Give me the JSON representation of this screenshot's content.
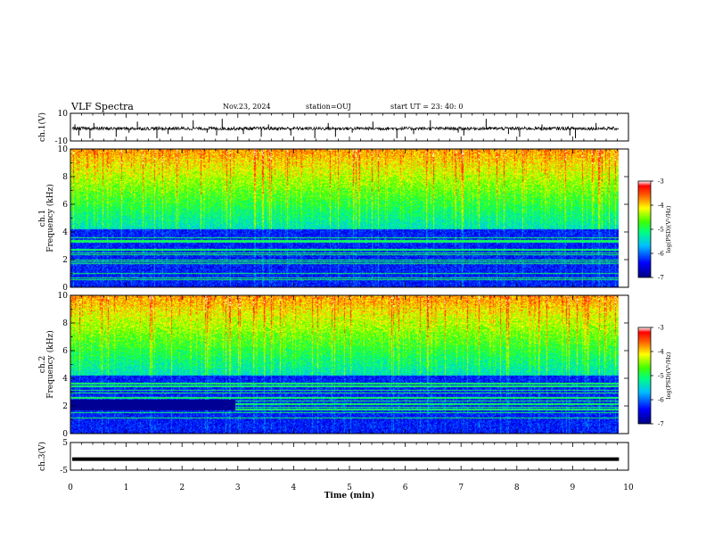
{
  "header": {
    "title": "VLF Spectra",
    "date": "Nov.23, 2024",
    "station": "station=OUJ",
    "start": "start  UT  =   23: 40: 0"
  },
  "chart_data": [
    {
      "type": "line",
      "id": "ch1-waveform",
      "ylabel": "ch.1(V)",
      "ylim": [
        -10,
        10
      ],
      "yticks": [
        10,
        -10
      ],
      "xlim": [
        0,
        10
      ],
      "signal_end_min": 9.83,
      "baseline": -1.0,
      "noise_amplitude": 1.2,
      "spike_times_min": [
        0.08,
        0.15,
        0.35,
        0.42,
        0.82,
        1.05,
        1.2,
        1.55,
        1.75,
        2.2,
        2.45,
        2.62,
        2.72,
        3.1,
        3.42,
        3.55,
        3.95,
        4.38,
        4.62,
        4.75,
        5.05,
        5.42,
        5.85,
        6.15,
        6.45,
        6.95,
        7.05,
        7.45,
        7.85,
        8.05,
        8.45,
        8.95,
        9.05,
        9.42
      ]
    },
    {
      "type": "heatmap",
      "id": "ch1-spectrogram",
      "ylabel_line1": "ch.1",
      "ylabel_line2": "Frequency (kHz)",
      "ylim": [
        0,
        10
      ],
      "yticks": [
        0,
        2,
        4,
        6,
        8,
        10
      ],
      "xlim": [
        0,
        10
      ],
      "signal_end_min": 9.83,
      "colorbar": {
        "label": "log(PSD)(V²/Hz)",
        "range": [
          -7,
          -3
        ],
        "ticks": [
          -3,
          -4,
          -5,
          -6,
          -7
        ]
      }
    },
    {
      "type": "heatmap",
      "id": "ch2-spectrogram",
      "ylabel_line1": "ch.2",
      "ylabel_line2": "Frequency (kHz)",
      "ylim": [
        0,
        10
      ],
      "yticks": [
        0,
        2,
        4,
        6,
        8,
        10
      ],
      "xlim": [
        0,
        10
      ],
      "signal_end_min": 9.83,
      "colorbar": {
        "label": "log(PSD)(V²/Hz)",
        "range": [
          -7,
          -3
        ],
        "ticks": [
          -3,
          -4,
          -5,
          -6,
          -7
        ]
      }
    },
    {
      "type": "line",
      "id": "ch3-waveform",
      "ylabel": "ch.3(V)",
      "ylim": [
        -5,
        5
      ],
      "yticks": [
        5,
        -5
      ],
      "xlim": [
        0,
        10
      ],
      "signal_end_min": 9.83,
      "baseline": -1.0,
      "xlabel": "Time  (min)",
      "xticks": [
        0,
        1,
        2,
        3,
        4,
        5,
        6,
        7,
        8,
        9,
        10
      ]
    }
  ]
}
